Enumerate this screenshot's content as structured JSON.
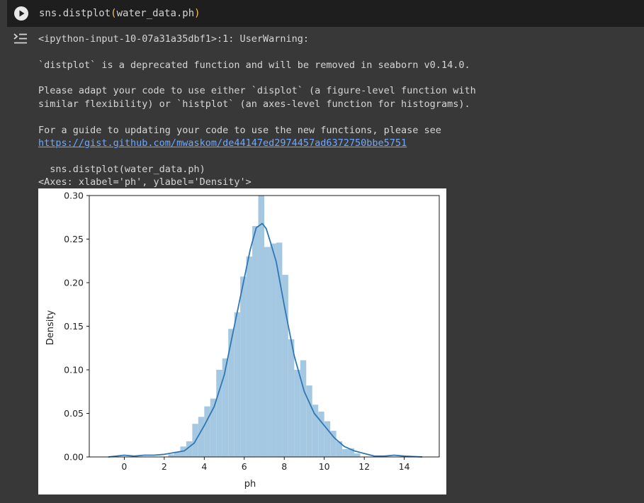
{
  "cell": {
    "run_icon": "play-icon",
    "code_prefix": "sns.distplot",
    "code_open": "(",
    "code_arg": "water_data.ph",
    "code_close": ")"
  },
  "output": {
    "icon": "output-collapse-icon",
    "lines": [
      "<ipython-input-10-07a31a35dbf1>:1: UserWarning:",
      "`distplot` is a deprecated function and will be removed in seaborn v0.14.0.",
      "Please adapt your code to use either `displot` (a figure-level function with",
      "similar flexibility) or `histplot` (an axes-level function for histograms).",
      "For a guide to updating your code to use the new functions, please see"
    ],
    "link": "https://gist.github.com/mwaskom/de44147ed2974457ad6372750bbe5751",
    "trace_line": "  sns.distplot(water_data.ph)",
    "axes_repr": "<Axes: xlabel='ph', ylabel='Density'>"
  },
  "chart_data": {
    "type": "bar",
    "overlay": "line",
    "xlabel": "ph",
    "ylabel": "Density",
    "xlim": [
      -1.75,
      15.75
    ],
    "ylim": [
      0,
      0.3
    ],
    "xticks": [
      0,
      2,
      4,
      6,
      8,
      10,
      12,
      14
    ],
    "yticks": [
      0.0,
      0.05,
      0.1,
      0.15,
      0.2,
      0.25,
      0.3
    ],
    "ytick_labels": [
      "0.00",
      "0.05",
      "0.10",
      "0.15",
      "0.20",
      "0.25",
      "0.30"
    ],
    "grid": false,
    "bar_color": "#a4c8e1",
    "line_color": "#2f77b4",
    "histogram": {
      "bin_edges": [
        2.2,
        2.5,
        2.8,
        3.1,
        3.4,
        3.7,
        4.0,
        4.3,
        4.6,
        4.9,
        5.2,
        5.5,
        5.8,
        6.1,
        6.4,
        6.7,
        7.0,
        7.3,
        7.6,
        7.9,
        8.2,
        8.5,
        8.8,
        9.1,
        9.4,
        9.7,
        10.0,
        10.3,
        10.6,
        10.9,
        11.2,
        11.5,
        11.8
      ],
      "density": [
        0.003,
        0.006,
        0.012,
        0.018,
        0.038,
        0.046,
        0.058,
        0.067,
        0.1,
        0.113,
        0.147,
        0.166,
        0.207,
        0.23,
        0.265,
        0.3,
        0.241,
        0.245,
        0.246,
        0.209,
        0.135,
        0.1,
        0.111,
        0.082,
        0.06,
        0.052,
        0.041,
        0.03,
        0.018,
        0.009,
        0.01,
        0.004
      ]
    },
    "kde": {
      "x": [
        -0.8,
        0,
        0.5,
        1,
        1.5,
        2,
        2.5,
        3,
        3.5,
        4,
        4.5,
        5,
        5.5,
        6,
        6.3,
        6.6,
        6.9,
        7.1,
        7.3,
        7.6,
        8,
        8.5,
        9,
        9.5,
        10,
        10.5,
        11,
        11.5,
        12,
        12.5,
        13,
        13.5,
        14,
        14.9
      ],
      "y": [
        0.0,
        0.002,
        0.001,
        0.002,
        0.002,
        0.003,
        0.005,
        0.007,
        0.016,
        0.036,
        0.058,
        0.094,
        0.15,
        0.205,
        0.238,
        0.263,
        0.268,
        0.262,
        0.247,
        0.224,
        0.174,
        0.116,
        0.075,
        0.05,
        0.036,
        0.022,
        0.012,
        0.007,
        0.004,
        0.001,
        0.001,
        0.002,
        0.001,
        0.0
      ]
    }
  }
}
